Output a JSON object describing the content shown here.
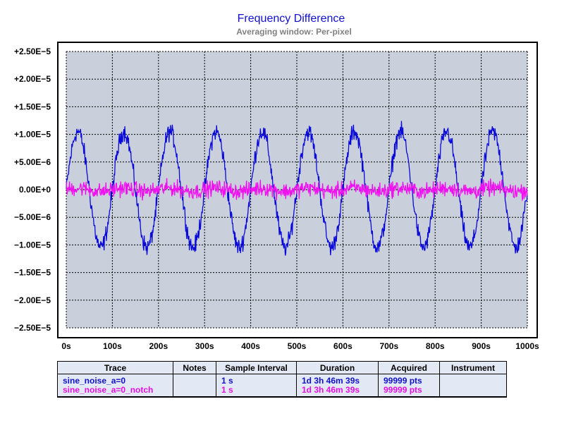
{
  "chart_data": {
    "type": "line",
    "title": "Frequency Difference",
    "subtitle": "Averaging window: Per-pixel",
    "xlabel": "",
    "ylabel": "",
    "xlim": [
      0,
      1000
    ],
    "ylim": [
      -2.5e-05,
      2.5e-05
    ],
    "x_ticks": [
      "0s",
      "100s",
      "200s",
      "300s",
      "400s",
      "500s",
      "600s",
      "700s",
      "800s",
      "900s",
      "1000s"
    ],
    "y_ticks": [
      "+2.50E−5",
      "+2.00E−5",
      "+1.50E−5",
      "+1.00E−5",
      "+5.00E−6",
      "0.00E+0",
      "−5.00E−6",
      "−1.00E−5",
      "−1.50E−5",
      "−2.00E−5",
      "−2.50E−5"
    ],
    "grid": true,
    "plot_background": "#c9cfdb",
    "series": [
      {
        "name": "sine_noise_a=0",
        "color": "#0a0ad8",
        "period_s": 100,
        "amplitude": 1.05e-05,
        "noise": 1.2e-06,
        "phase_deg": 0
      },
      {
        "name": "sine_noise_a=0_notch",
        "color": "#f010f0",
        "period_s": 100,
        "amplitude": 3e-07,
        "noise": 1.1e-06,
        "phase_deg": 0
      }
    ]
  },
  "table": {
    "headers": [
      "Trace",
      "Notes",
      "Sample Interval",
      "Duration",
      "Acquired",
      "Instrument"
    ],
    "rows": [
      {
        "trace": "sine_noise_a=0",
        "notes": "",
        "interval": "1 s",
        "duration": "1d 3h 46m 39s",
        "acquired": "99999 pts",
        "instrument": "",
        "color": "#1010c8"
      },
      {
        "trace": "sine_noise_a=0_notch",
        "notes": "",
        "interval": "1 s",
        "duration": "1d 3h 46m 39s",
        "acquired": "99999 pts",
        "instrument": "",
        "color": "#e010e0"
      }
    ]
  }
}
